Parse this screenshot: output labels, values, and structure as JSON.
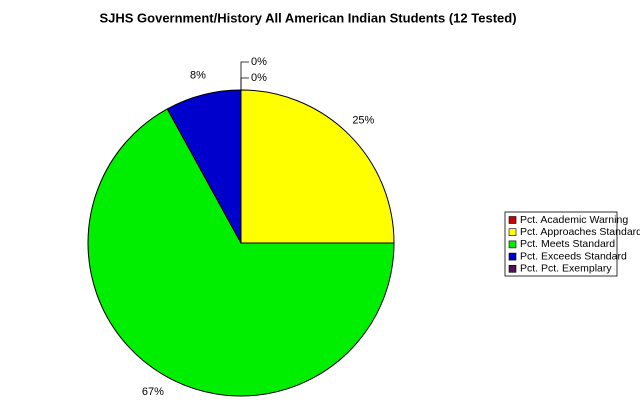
{
  "chart_data": {
    "type": "pie",
    "title": "SJHS Government/History All American Indian Students (12 Tested)",
    "categories": [
      "Pct. Academic Warning",
      "Pct. Approaches Standard",
      "Pct. Meets Standard",
      "Pct. Exceeds Standard",
      "Pct. Pct. Exemplary"
    ],
    "values": [
      0,
      25,
      67,
      8,
      0
    ],
    "value_labels": [
      "0%",
      "25%",
      "67%",
      "8%",
      "0%"
    ],
    "colors": [
      "#cc0000",
      "#ffff00",
      "#00ee00",
      "#0000cc",
      "#551155"
    ],
    "legend": "right"
  }
}
